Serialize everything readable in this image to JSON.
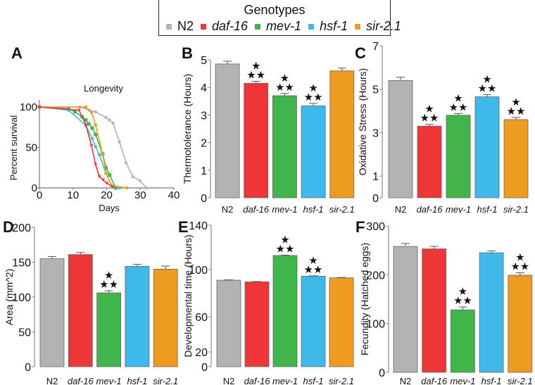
{
  "legend": {
    "title": "Genotypes",
    "items": [
      {
        "label": "N2",
        "color": "#b3b3b3",
        "italic": false
      },
      {
        "label": "daf-16",
        "color": "#ee3537",
        "italic": true
      },
      {
        "label": "mev-1",
        "color": "#3fb54a",
        "italic": true
      },
      {
        "label": "hsf-1",
        "color": "#3fb8ea",
        "italic": true
      },
      {
        "label": "sir-2.1",
        "color": "#ee9b22",
        "italic": true
      }
    ]
  },
  "significance_marker": "***",
  "chart_data": [
    {
      "panel": "A",
      "type": "line",
      "title": "Longevity",
      "xlabel": "Days",
      "ylabel": "Percent survival",
      "xlim": [
        0,
        40
      ],
      "ylim": [
        0,
        100
      ],
      "xticks": [
        "0",
        "10",
        "20",
        "30",
        "40"
      ],
      "yticks": [
        "0",
        "50",
        "100"
      ],
      "series": [
        {
          "name": "N2",
          "x": [
            0,
            12,
            14.8,
            16.7,
            19.8,
            20.8,
            21.9,
            23.8,
            25.8,
            27.8,
            29.9,
            31.8
          ],
          "y": [
            100,
            100,
            96,
            94,
            87,
            84,
            80,
            57,
            31,
            14,
            9,
            0
          ]
        },
        {
          "name": "daf-16",
          "x": [
            0,
            11.8,
            13.8,
            15.5,
            16.7,
            17.8,
            18.9,
            20,
            21.8
          ],
          "y": [
            100,
            96,
            78,
            52,
            29,
            14,
            10,
            6,
            1
          ]
        },
        {
          "name": "mev-1",
          "x": [
            0,
            8.7,
            10.6,
            12.7,
            13.8,
            14.7,
            15.7,
            16.7,
            18.8,
            19.8,
            20.9,
            22.7
          ],
          "y": [
            100,
            98,
            94,
            88,
            84,
            79,
            74,
            66,
            42,
            25,
            16,
            0
          ]
        },
        {
          "name": "hsf-1",
          "x": [
            0,
            8.7,
            13.8,
            15.7,
            16.7,
            17.8,
            19.8,
            21.5,
            23.8
          ],
          "y": [
            100,
            96,
            77,
            61,
            51,
            41,
            18,
            3,
            0
          ]
        },
        {
          "name": "sir-2.1",
          "x": [
            0,
            13.8,
            15.5,
            16.7,
            18.8,
            19.8,
            21.5,
            26
          ],
          "y": [
            100,
            100,
            93,
            78,
            42,
            18,
            3,
            0
          ]
        }
      ]
    },
    {
      "panel": "B",
      "type": "bar",
      "ylabel": "Thermotolerance (Hours)",
      "ylim": [
        0,
        5
      ],
      "yticks": [
        "0",
        "1",
        "2",
        "3",
        "4",
        "5"
      ],
      "categories": [
        "N2",
        "daf-16",
        "mev-1",
        "hsf-1",
        "sir-2.1"
      ],
      "values": [
        4.85,
        4.15,
        3.7,
        3.33,
        4.6
      ],
      "errors": [
        0.1,
        0.07,
        0.08,
        0.09,
        0.1
      ],
      "significant": [
        false,
        true,
        true,
        true,
        false
      ]
    },
    {
      "panel": "C",
      "type": "bar",
      "ylabel": "Oxidative Stress (Hours)",
      "ylim": [
        0,
        7
      ],
      "yticks": [
        "0",
        "1",
        "3",
        "5",
        "7"
      ],
      "categories": [
        "N2",
        "daf-16",
        "mev-1",
        "hsf-1",
        "sir-2.1"
      ],
      "values": [
        5.4,
        3.3,
        3.8,
        4.65,
        3.6
      ],
      "errors": [
        0.15,
        0.08,
        0.08,
        0.1,
        0.1
      ],
      "significant": [
        false,
        true,
        true,
        true,
        true
      ]
    },
    {
      "panel": "D",
      "type": "bar",
      "ylabel": "Area (mm^2)",
      "ylim": [
        0,
        200
      ],
      "yticks": [
        "0",
        "50",
        "100",
        "150",
        "200"
      ],
      "categories": [
        "N2",
        "daf-16",
        "mev-1",
        "hsf-1",
        "sir-2.1"
      ],
      "values": [
        155,
        161,
        106,
        144,
        140
      ],
      "errors": [
        3,
        3,
        3,
        3,
        4.5
      ],
      "significant": [
        false,
        false,
        true,
        false,
        false
      ]
    },
    {
      "panel": "E",
      "type": "bar",
      "ylabel": "Developmental time (Hours)",
      "ylim": [
        0,
        140
      ],
      "yticks": [
        "0",
        "20",
        "60",
        "100",
        "140"
      ],
      "categories": [
        "N2",
        "daf-16",
        "mev-1",
        "hsf-1",
        "sir-2.1"
      ],
      "values": [
        91,
        89.6,
        112.7,
        94.4,
        93
      ],
      "errors": [
        0.3,
        0.3,
        0.3,
        0.3,
        0.3
      ],
      "significant": [
        false,
        false,
        true,
        true,
        false
      ]
    },
    {
      "panel": "F",
      "type": "bar",
      "ylabel": "Fecundity (Hatched eggs)",
      "ylim": [
        0,
        300
      ],
      "yticks": [
        "0",
        "100",
        "200",
        "300"
      ],
      "categories": [
        "N2",
        "daf-16",
        "mev-1",
        "hsf-1",
        "sir-2.1"
      ],
      "values": [
        258,
        253,
        128,
        245,
        199
      ],
      "errors": [
        6,
        5,
        6,
        4,
        5
      ],
      "significant": [
        false,
        false,
        true,
        false,
        true
      ]
    }
  ]
}
